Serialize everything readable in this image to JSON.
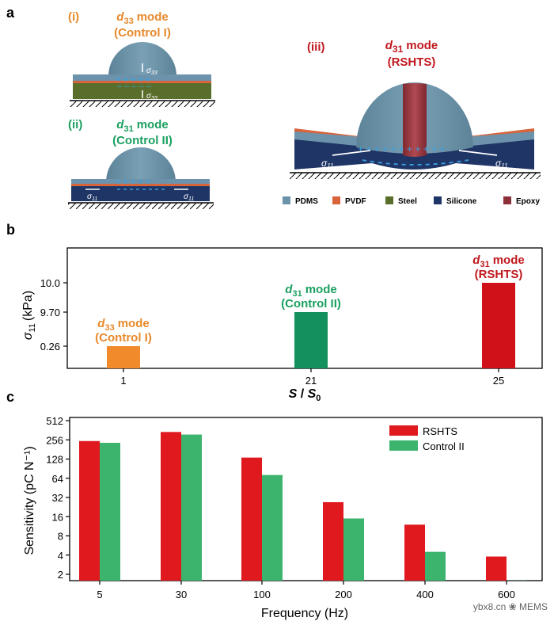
{
  "panels": {
    "a": "a",
    "b": "b",
    "c": "c"
  },
  "panel_a": {
    "items": [
      {
        "roman": "(i)",
        "mode_symbol": "d",
        "mode_sub": "33",
        "mode_word": "mode",
        "control": "(Control I)",
        "color": "#e8892b"
      },
      {
        "roman": "(ii)",
        "mode_symbol": "d",
        "mode_sub": "31",
        "mode_word": "mode",
        "control": "(Control II)",
        "color": "#1aa060"
      },
      {
        "roman": "(iii)",
        "mode_symbol": "d",
        "mode_sub": "31",
        "mode_word": "mode",
        "control": "(RSHTS)",
        "color": "#c0181e"
      }
    ],
    "stress_labels": {
      "s33_sym": "σ",
      "s33_sub": "33",
      "s11_sym": "σ",
      "s11_sub": "11"
    },
    "legend": [
      {
        "label": "PDMS",
        "color": "#6c93ab"
      },
      {
        "label": "PVDF",
        "color": "#d8643c"
      },
      {
        "label": "Steel",
        "color": "#5a6e2c"
      },
      {
        "label": "Silicone",
        "color": "#1f3566"
      },
      {
        "label": "Epoxy",
        "color": "#8e3038"
      }
    ]
  },
  "chart_data": [
    {
      "type": "bar",
      "ylabel_symbol": "σ",
      "ylabel_sub": "11",
      "ylabel_unit": "(kPa)",
      "xlabel_S": "S",
      "xlabel_slash": " / ",
      "xlabel_S0": "S",
      "xlabel_S0_sub": "0",
      "yticks": [
        "0.26",
        "9.70",
        "10.0"
      ],
      "categories": [
        "1",
        "21",
        "25"
      ],
      "values": [
        0.26,
        9.7,
        10.0
      ],
      "bar_colors": [
        "#f08a2a",
        "#12915c",
        "#d0111a"
      ],
      "bar_labels": [
        {
          "sym": "d",
          "sub": "33",
          "word": "mode",
          "line2": "(Control I)",
          "color": "#e8892b"
        },
        {
          "sym": "d",
          "sub": "31",
          "word": "mode",
          "line2": "(Control II)",
          "color": "#1aa060"
        },
        {
          "sym": "d",
          "sub": "31",
          "word": "mode",
          "line2": "(RSHTS)",
          "color": "#c0181e"
        }
      ],
      "yscale": "broken (0.26, 9.70, 10.0)"
    },
    {
      "type": "bar",
      "yscale": "log2",
      "ylabel": "Sensitivity (pC N⁻¹)",
      "xlabel": "Frequency (Hz)",
      "ylim": [
        1.4,
        512
      ],
      "yticks": [
        "512",
        "256",
        "128",
        "64",
        "32",
        "16",
        "8",
        "4",
        "2"
      ],
      "categories": [
        "5",
        "30",
        "100",
        "200",
        "400",
        "600"
      ],
      "series": [
        {
          "name": "RSHTS",
          "color": "#e0191f",
          "values": [
            245,
            340,
            135,
            27,
            12,
            3.8
          ]
        },
        {
          "name": "Control II",
          "color": "#3db46d",
          "values": [
            230,
            310,
            72,
            15,
            4.5,
            1.6
          ]
        }
      ],
      "legend_position": "top-right"
    }
  ],
  "watermark": "ybx8.cn  ❀ MEMS"
}
